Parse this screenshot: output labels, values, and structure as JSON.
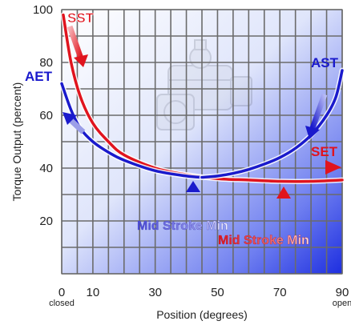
{
  "chart_data": {
    "type": "line",
    "xlabel": "Position (degrees)",
    "ylabel": "Torque Output (percent)",
    "xlim": [
      0,
      90
    ],
    "ylim": [
      0,
      100
    ],
    "xticks": [
      {
        "value": 0,
        "label": "0",
        "sublabel": "closed"
      },
      {
        "value": 10,
        "label": "10",
        "sublabel": ""
      },
      {
        "value": 30,
        "label": "30",
        "sublabel": ""
      },
      {
        "value": 50,
        "label": "50",
        "sublabel": ""
      },
      {
        "value": 70,
        "label": "70",
        "sublabel": ""
      },
      {
        "value": 90,
        "label": "90",
        "sublabel": "open"
      }
    ],
    "yticks": [
      20,
      40,
      60,
      80,
      100
    ],
    "grid": true,
    "series": [
      {
        "name": "SST",
        "color": "#e0141e",
        "x": [
          0.5,
          3,
          6,
          10,
          15,
          20,
          30,
          40,
          50,
          60,
          70,
          80,
          90
        ],
        "y": [
          98,
          80,
          67,
          57,
          50,
          45,
          40,
          37.5,
          36,
          35.5,
          35,
          35,
          35.5
        ]
      },
      {
        "name": "AET",
        "color": "#1a1acc",
        "x": [
          0,
          3,
          6,
          10,
          15,
          20,
          30,
          40,
          45
        ],
        "y": [
          72,
          62,
          55,
          50,
          46,
          43,
          39,
          37,
          36.5
        ]
      },
      {
        "name": "AST",
        "color": "#1a1acc",
        "x": [
          45,
          50,
          55,
          60,
          65,
          70,
          75,
          80,
          85,
          88,
          90
        ],
        "y": [
          36.5,
          37,
          38,
          39.5,
          41.5,
          44,
          47.5,
          52.5,
          60,
          67,
          77
        ]
      }
    ],
    "annotations": [
      {
        "text": "SST",
        "color": "#e0141e"
      },
      {
        "text": "AET",
        "color": "#1a1acc"
      },
      {
        "text": "AST",
        "color": "#1a1acc"
      },
      {
        "text": "SET",
        "color": "#e0141e"
      },
      {
        "text": "Mid Stroke Min",
        "color": "#6a6ae0"
      },
      {
        "text": "Mid Stroke Min",
        "color": "#e0141e"
      }
    ]
  }
}
